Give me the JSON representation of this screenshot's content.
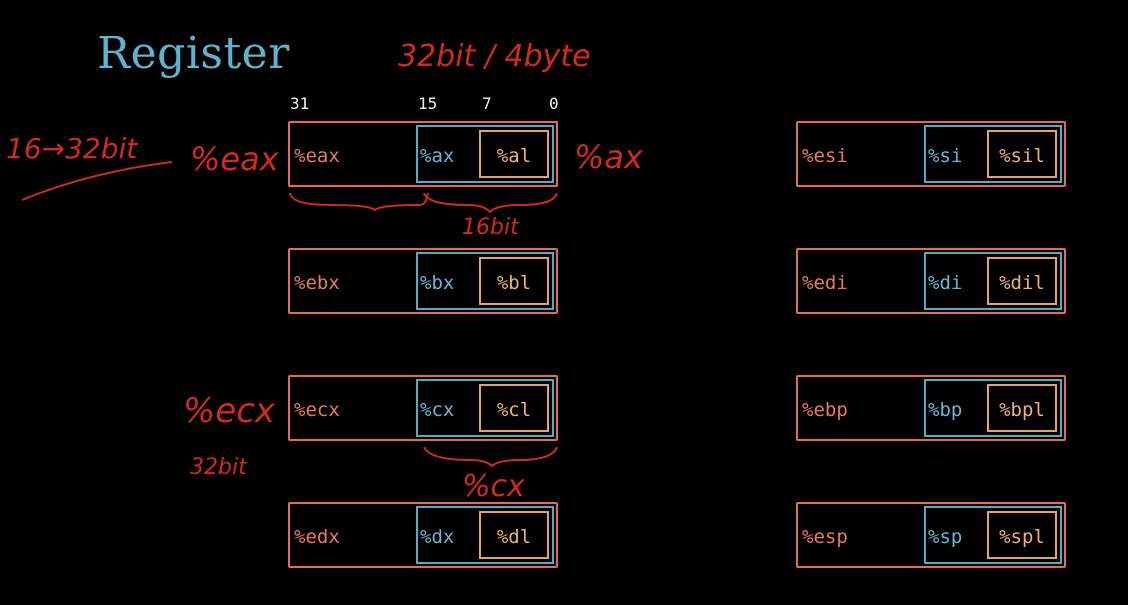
{
  "title": "Register",
  "bit_labels": [
    "31",
    "15",
    "7",
    "0"
  ],
  "registers": [
    {
      "r32": "%eax",
      "r16": "%ax",
      "r8": "%al"
    },
    {
      "r32": "%ebx",
      "r16": "%bx",
      "r8": "%bl"
    },
    {
      "r32": "%ecx",
      "r16": "%cx",
      "r8": "%cl"
    },
    {
      "r32": "%edx",
      "r16": "%dx",
      "r8": "%dl"
    },
    {
      "r32": "%esi",
      "r16": "%si",
      "r8": "%sil"
    },
    {
      "r32": "%edi",
      "r16": "%di",
      "r8": "%dil"
    },
    {
      "r32": "%ebp",
      "r16": "%bp",
      "r8": "%bpl"
    },
    {
      "r32": "%esp",
      "r16": "%sp",
      "r8": "%spl"
    }
  ],
  "annotations": {
    "size_note": "32bit / 4byte",
    "widen_note": "16→32bit",
    "eax_note": "%eax",
    "ax_note": "%ax",
    "sixteen_bit": "16bit",
    "ecx_note": "%ecx",
    "thirty_two_bit": "32bit",
    "cx_note": "%cx"
  },
  "colors": {
    "background": "#000000",
    "title": "#5fb3cf",
    "reg32": "#e36b57",
    "reg16": "#58a9c7",
    "reg8": "#e2a56c",
    "annotation": "#d42a1e"
  }
}
